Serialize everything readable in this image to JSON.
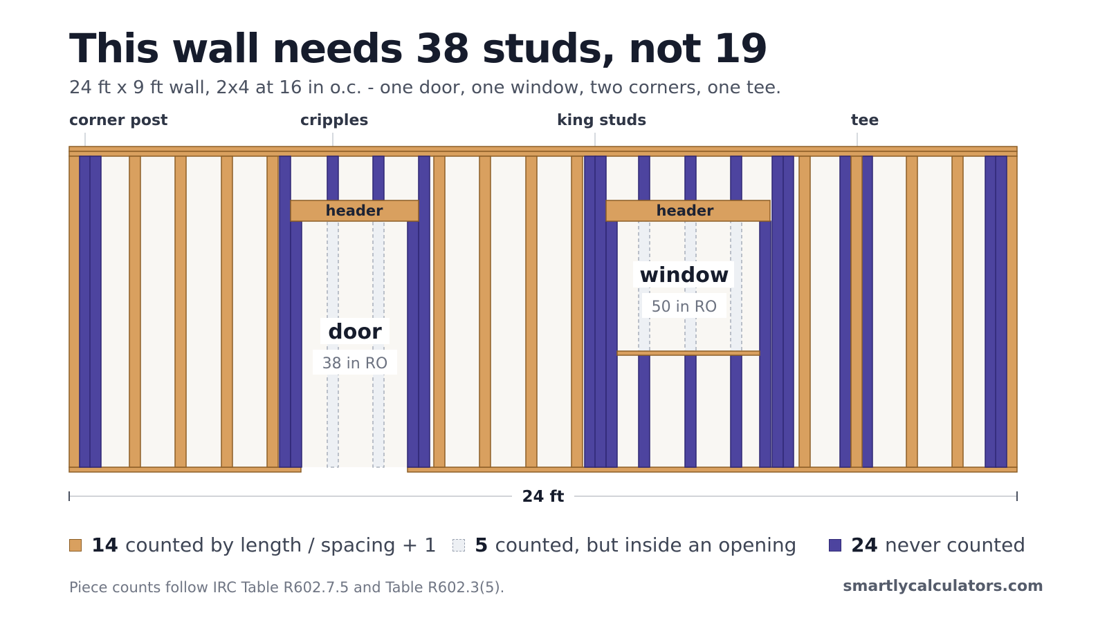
{
  "title": "This wall needs 38 studs, not 19",
  "subtitle": "24 ft x 9 ft wall, 2x4 at 16 in o.c. - one door, one window, two corners, one tee.",
  "callouts": [
    "corner post",
    "cripples",
    "king studs",
    "tee"
  ],
  "diagram": {
    "header_label": "header",
    "door": {
      "label": "door",
      "ro": "38 in RO"
    },
    "window": {
      "label": "window",
      "ro": "50 in RO"
    },
    "dimension": "24 ft"
  },
  "legend": {
    "counted": {
      "count": "14",
      "text": "counted by length / spacing + 1"
    },
    "opening": {
      "count": "5",
      "text": "counted, but inside an opening"
    },
    "never": {
      "count": "24",
      "text": "never counted"
    }
  },
  "footnote": "Piece counts follow IRC Table R602.7.5 and Table R602.3(5).",
  "brand": "smartlycalculators.com",
  "colors": {
    "counted": "#d9a05f",
    "opening": "#edf0f4",
    "never": "#4d449f",
    "wall": "#f9f7f3"
  }
}
